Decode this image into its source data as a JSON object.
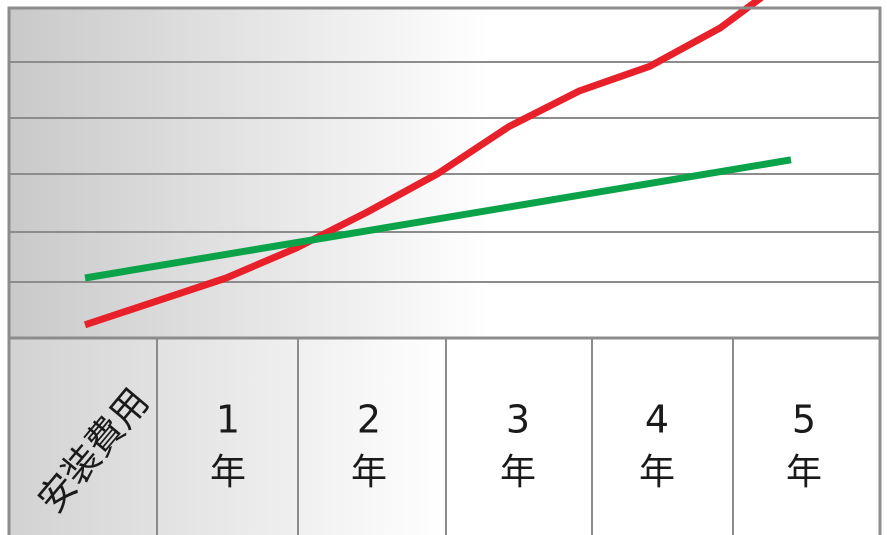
{
  "chart_data": {
    "type": "line",
    "title": "",
    "xlabel": "",
    "ylabel": "",
    "row_header": "安装費用",
    "categories": [
      {
        "number": "1",
        "unit": "年"
      },
      {
        "number": "2",
        "unit": "年"
      },
      {
        "number": "3",
        "unit": "年"
      },
      {
        "number": "4",
        "unit": "年"
      },
      {
        "number": "5",
        "unit": "年"
      }
    ],
    "x": [
      0,
      1,
      1.5,
      2,
      2.5,
      3,
      3.5,
      4,
      4.5,
      5
    ],
    "ylim": [
      0,
      6
    ],
    "grid": true,
    "series": [
      {
        "color": "#e8202a",
        "x": [
          0,
          1,
          1.5,
          2,
          2.5,
          3,
          3.5,
          4,
          4.5,
          5
        ],
        "values": [
          0.35,
          1.2,
          1.75,
          2.4,
          3.1,
          3.95,
          4.6,
          5.05,
          5.75,
          6.7
        ]
      },
      {
        "color": "#0aa34a",
        "x": [
          0,
          5
        ],
        "values": [
          1.2,
          3.35
        ]
      }
    ]
  }
}
